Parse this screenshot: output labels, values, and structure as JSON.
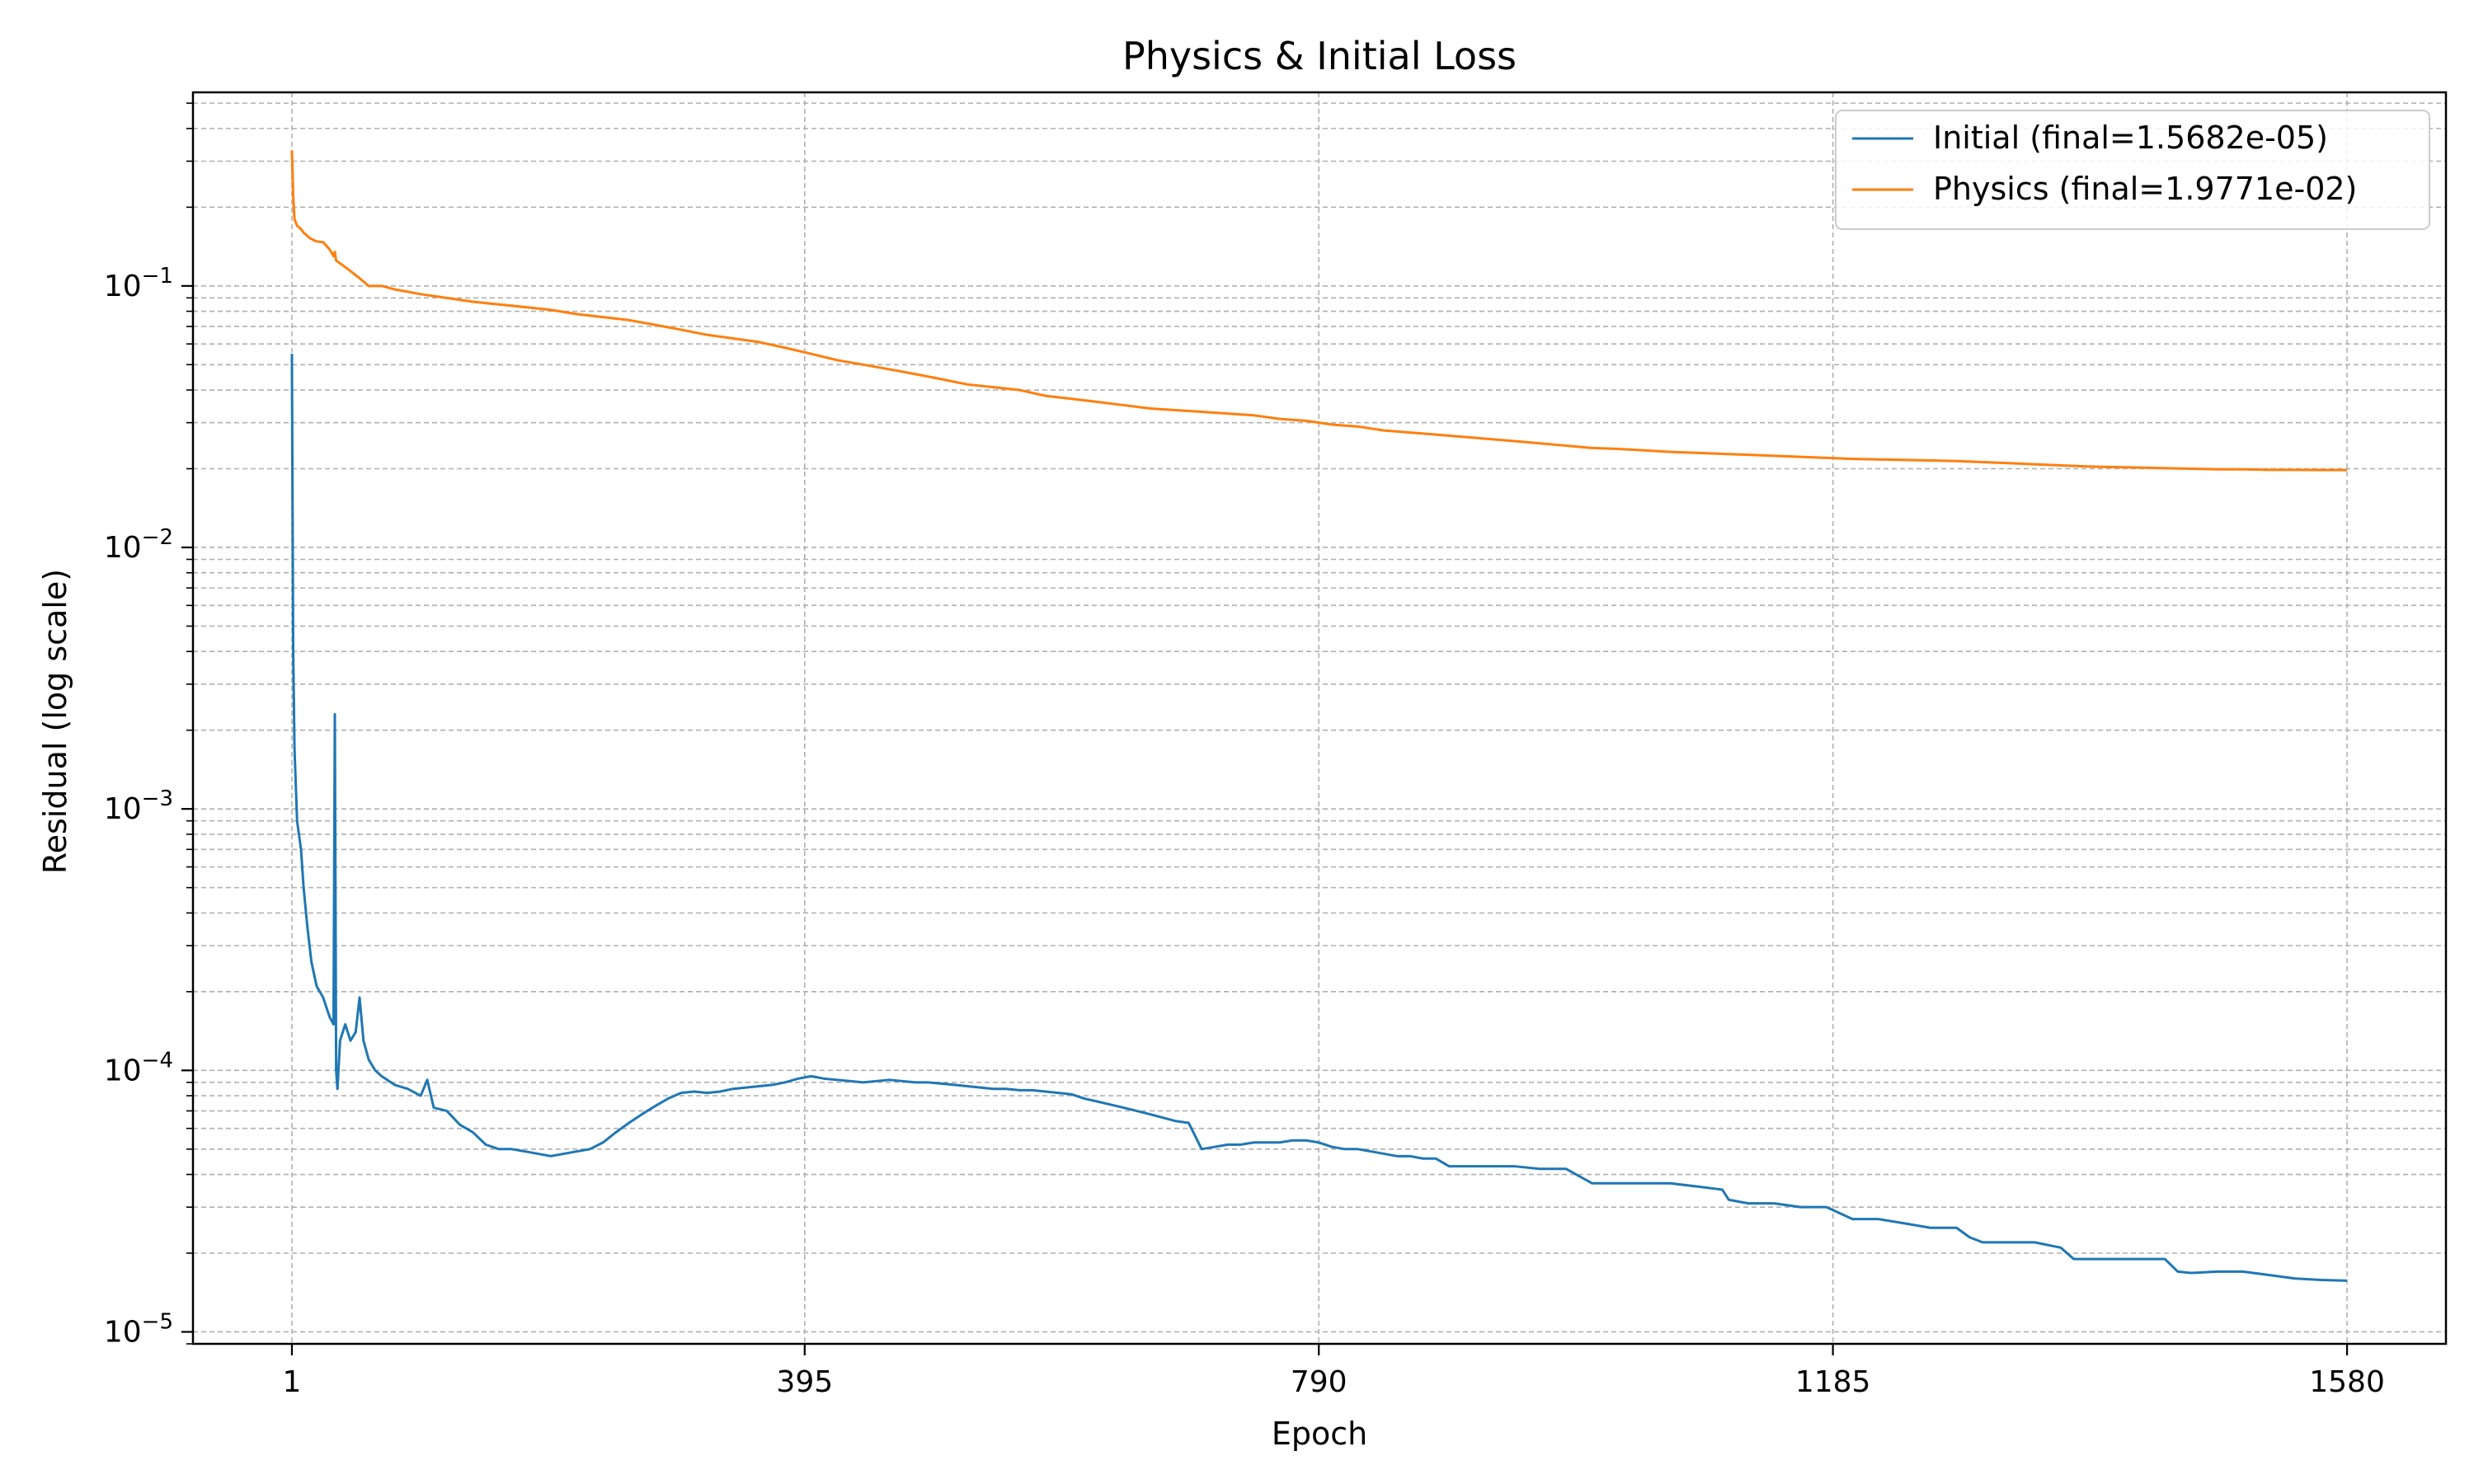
{
  "chart_data": {
    "type": "line",
    "title": "Physics & Initial Loss",
    "xlabel": "Epoch",
    "ylabel": "Residual (log scale)",
    "yscale": "log",
    "xlim": [
      -75,
      1656
    ],
    "ylim": [
      9e-06,
      0.55
    ],
    "xticks": [
      1,
      395,
      790,
      1185,
      1580
    ],
    "xtick_labels": [
      "1",
      "395",
      "790",
      "1185",
      "1580"
    ],
    "yticks": [
      1e-05,
      0.0001,
      0.001,
      0.01,
      0.1
    ],
    "ytick_labels": [
      {
        "base": "10",
        "exp": "−5"
      },
      {
        "base": "10",
        "exp": "−4"
      },
      {
        "base": "10",
        "exp": "−3"
      },
      {
        "base": "10",
        "exp": "−2"
      },
      {
        "base": "10",
        "exp": "−1"
      }
    ],
    "grid": true,
    "legend_position": "top-right",
    "series": [
      {
        "name": "Initial (final=1.5682e-05)",
        "color": "#1f77b4",
        "points": [
          [
            1,
            0.055
          ],
          [
            2,
            0.004
          ],
          [
            3,
            0.0017
          ],
          [
            5,
            0.0009
          ],
          [
            8,
            0.0007
          ],
          [
            10,
            0.0005
          ],
          [
            13,
            0.00035
          ],
          [
            16,
            0.00026
          ],
          [
            20,
            0.00021
          ],
          [
            25,
            0.00019
          ],
          [
            30,
            0.00016
          ],
          [
            33,
            0.00015
          ],
          [
            34,
            0.0023
          ],
          [
            35,
            0.0001
          ],
          [
            36,
            8.5e-05
          ],
          [
            38,
            0.00013
          ],
          [
            42,
            0.00015
          ],
          [
            46,
            0.00013
          ],
          [
            50,
            0.00014
          ],
          [
            53,
            0.00019
          ],
          [
            56,
            0.00013
          ],
          [
            60,
            0.00011
          ],
          [
            65,
            0.0001
          ],
          [
            70,
            9.5e-05
          ],
          [
            80,
            8.8e-05
          ],
          [
            90,
            8.5e-05
          ],
          [
            100,
            8e-05
          ],
          [
            105,
            9.2e-05
          ],
          [
            110,
            7.2e-05
          ],
          [
            120,
            7e-05
          ],
          [
            130,
            6.2e-05
          ],
          [
            140,
            5.8e-05
          ],
          [
            150,
            5.2e-05
          ],
          [
            160,
            5e-05
          ],
          [
            170,
            5e-05
          ],
          [
            180,
            4.9e-05
          ],
          [
            190,
            4.8e-05
          ],
          [
            200,
            4.7e-05
          ],
          [
            210,
            4.8e-05
          ],
          [
            220,
            4.9e-05
          ],
          [
            230,
            5e-05
          ],
          [
            240,
            5.3e-05
          ],
          [
            250,
            5.8e-05
          ],
          [
            260,
            6.3e-05
          ],
          [
            270,
            6.8e-05
          ],
          [
            280,
            7.3e-05
          ],
          [
            290,
            7.8e-05
          ],
          [
            300,
            8.2e-05
          ],
          [
            310,
            8.3e-05
          ],
          [
            320,
            8.2e-05
          ],
          [
            330,
            8.3e-05
          ],
          [
            340,
            8.5e-05
          ],
          [
            350,
            8.6e-05
          ],
          [
            360,
            8.7e-05
          ],
          [
            370,
            8.8e-05
          ],
          [
            380,
            9e-05
          ],
          [
            390,
            9.3e-05
          ],
          [
            400,
            9.5e-05
          ],
          [
            410,
            9.3e-05
          ],
          [
            420,
            9.2e-05
          ],
          [
            430,
            9.1e-05
          ],
          [
            440,
            9e-05
          ],
          [
            450,
            9.1e-05
          ],
          [
            460,
            9.2e-05
          ],
          [
            470,
            9.1e-05
          ],
          [
            480,
            9e-05
          ],
          [
            490,
            9e-05
          ],
          [
            500,
            8.9e-05
          ],
          [
            510,
            8.8e-05
          ],
          [
            520,
            8.7e-05
          ],
          [
            530,
            8.6e-05
          ],
          [
            540,
            8.5e-05
          ],
          [
            550,
            8.5e-05
          ],
          [
            560,
            8.4e-05
          ],
          [
            570,
            8.4e-05
          ],
          [
            580,
            8.3e-05
          ],
          [
            590,
            8.2e-05
          ],
          [
            600,
            8.1e-05
          ],
          [
            610,
            7.8e-05
          ],
          [
            620,
            7.6e-05
          ],
          [
            630,
            7.4e-05
          ],
          [
            640,
            7.2e-05
          ],
          [
            650,
            7e-05
          ],
          [
            660,
            6.8e-05
          ],
          [
            670,
            6.6e-05
          ],
          [
            680,
            6.4e-05
          ],
          [
            690,
            6.3e-05
          ],
          [
            700,
            5e-05
          ],
          [
            710,
            5.1e-05
          ],
          [
            720,
            5.2e-05
          ],
          [
            730,
            5.2e-05
          ],
          [
            740,
            5.3e-05
          ],
          [
            750,
            5.3e-05
          ],
          [
            760,
            5.3e-05
          ],
          [
            770,
            5.4e-05
          ],
          [
            780,
            5.4e-05
          ],
          [
            790,
            5.3e-05
          ],
          [
            800,
            5.1e-05
          ],
          [
            810,
            5e-05
          ],
          [
            820,
            5e-05
          ],
          [
            830,
            4.9e-05
          ],
          [
            840,
            4.8e-05
          ],
          [
            850,
            4.7e-05
          ],
          [
            860,
            4.7e-05
          ],
          [
            870,
            4.6e-05
          ],
          [
            880,
            4.6e-05
          ],
          [
            890,
            4.3e-05
          ],
          [
            900,
            4.3e-05
          ],
          [
            920,
            4.3e-05
          ],
          [
            940,
            4.3e-05
          ],
          [
            960,
            4.2e-05
          ],
          [
            980,
            4.2e-05
          ],
          [
            1000,
            3.7e-05
          ],
          [
            1020,
            3.7e-05
          ],
          [
            1040,
            3.7e-05
          ],
          [
            1060,
            3.7e-05
          ],
          [
            1080,
            3.6e-05
          ],
          [
            1100,
            3.5e-05
          ],
          [
            1105,
            3.2e-05
          ],
          [
            1120,
            3.1e-05
          ],
          [
            1140,
            3.1e-05
          ],
          [
            1160,
            3e-05
          ],
          [
            1180,
            3e-05
          ],
          [
            1200,
            2.7e-05
          ],
          [
            1220,
            2.7e-05
          ],
          [
            1240,
            2.6e-05
          ],
          [
            1260,
            2.5e-05
          ],
          [
            1280,
            2.5e-05
          ],
          [
            1290,
            2.3e-05
          ],
          [
            1300,
            2.2e-05
          ],
          [
            1320,
            2.2e-05
          ],
          [
            1340,
            2.2e-05
          ],
          [
            1360,
            2.1e-05
          ],
          [
            1370,
            1.9e-05
          ],
          [
            1380,
            1.9e-05
          ],
          [
            1400,
            1.9e-05
          ],
          [
            1420,
            1.9e-05
          ],
          [
            1440,
            1.9e-05
          ],
          [
            1450,
            1.7e-05
          ],
          [
            1460,
            1.68e-05
          ],
          [
            1480,
            1.7e-05
          ],
          [
            1500,
            1.7e-05
          ],
          [
            1520,
            1.65e-05
          ],
          [
            1540,
            1.6e-05
          ],
          [
            1560,
            1.58e-05
          ],
          [
            1580,
            1.57e-05
          ]
        ]
      },
      {
        "name": "Physics (final=1.9771e-02)",
        "color": "#ff7f0e",
        "points": [
          [
            1,
            0.33
          ],
          [
            2,
            0.22
          ],
          [
            3,
            0.18
          ],
          [
            5,
            0.17
          ],
          [
            8,
            0.165
          ],
          [
            10,
            0.16
          ],
          [
            15,
            0.152
          ],
          [
            20,
            0.148
          ],
          [
            25,
            0.147
          ],
          [
            30,
            0.138
          ],
          [
            33,
            0.13
          ],
          [
            34,
            0.135
          ],
          [
            35,
            0.125
          ],
          [
            40,
            0.12
          ],
          [
            45,
            0.115
          ],
          [
            50,
            0.11
          ],
          [
            55,
            0.105
          ],
          [
            60,
            0.1
          ],
          [
            70,
            0.1
          ],
          [
            80,
            0.097
          ],
          [
            100,
            0.093
          ],
          [
            120,
            0.09
          ],
          [
            140,
            0.087
          ],
          [
            160,
            0.085
          ],
          [
            180,
            0.083
          ],
          [
            200,
            0.081
          ],
          [
            220,
            0.078
          ],
          [
            240,
            0.076
          ],
          [
            260,
            0.074
          ],
          [
            280,
            0.071
          ],
          [
            300,
            0.068
          ],
          [
            320,
            0.065
          ],
          [
            340,
            0.063
          ],
          [
            360,
            0.061
          ],
          [
            380,
            0.058
          ],
          [
            400,
            0.055
          ],
          [
            420,
            0.052
          ],
          [
            440,
            0.05
          ],
          [
            460,
            0.048
          ],
          [
            480,
            0.046
          ],
          [
            500,
            0.044
          ],
          [
            520,
            0.042
          ],
          [
            540,
            0.041
          ],
          [
            560,
            0.04
          ],
          [
            580,
            0.038
          ],
          [
            600,
            0.037
          ],
          [
            620,
            0.036
          ],
          [
            640,
            0.035
          ],
          [
            660,
            0.034
          ],
          [
            680,
            0.0335
          ],
          [
            700,
            0.033
          ],
          [
            720,
            0.0325
          ],
          [
            740,
            0.032
          ],
          [
            760,
            0.031
          ],
          [
            780,
            0.0305
          ],
          [
            790,
            0.03
          ],
          [
            800,
            0.0295
          ],
          [
            820,
            0.029
          ],
          [
            840,
            0.028
          ],
          [
            860,
            0.0275
          ],
          [
            880,
            0.027
          ],
          [
            900,
            0.0265
          ],
          [
            920,
            0.026
          ],
          [
            940,
            0.0255
          ],
          [
            960,
            0.025
          ],
          [
            980,
            0.0245
          ],
          [
            1000,
            0.024
          ],
          [
            1020,
            0.0238
          ],
          [
            1040,
            0.0235
          ],
          [
            1060,
            0.0232
          ],
          [
            1080,
            0.023
          ],
          [
            1100,
            0.0228
          ],
          [
            1120,
            0.0226
          ],
          [
            1140,
            0.0224
          ],
          [
            1160,
            0.0222
          ],
          [
            1180,
            0.022
          ],
          [
            1200,
            0.0218
          ],
          [
            1220,
            0.0217
          ],
          [
            1240,
            0.0216
          ],
          [
            1260,
            0.0215
          ],
          [
            1280,
            0.0214
          ],
          [
            1300,
            0.0212
          ],
          [
            1320,
            0.021
          ],
          [
            1340,
            0.0208
          ],
          [
            1360,
            0.0206
          ],
          [
            1380,
            0.0204
          ],
          [
            1400,
            0.0203
          ],
          [
            1420,
            0.0202
          ],
          [
            1440,
            0.0201
          ],
          [
            1460,
            0.02
          ],
          [
            1480,
            0.0199
          ],
          [
            1500,
            0.0199
          ],
          [
            1520,
            0.0198
          ],
          [
            1540,
            0.0198
          ],
          [
            1560,
            0.01977
          ],
          [
            1580,
            0.01977
          ]
        ]
      }
    ]
  }
}
